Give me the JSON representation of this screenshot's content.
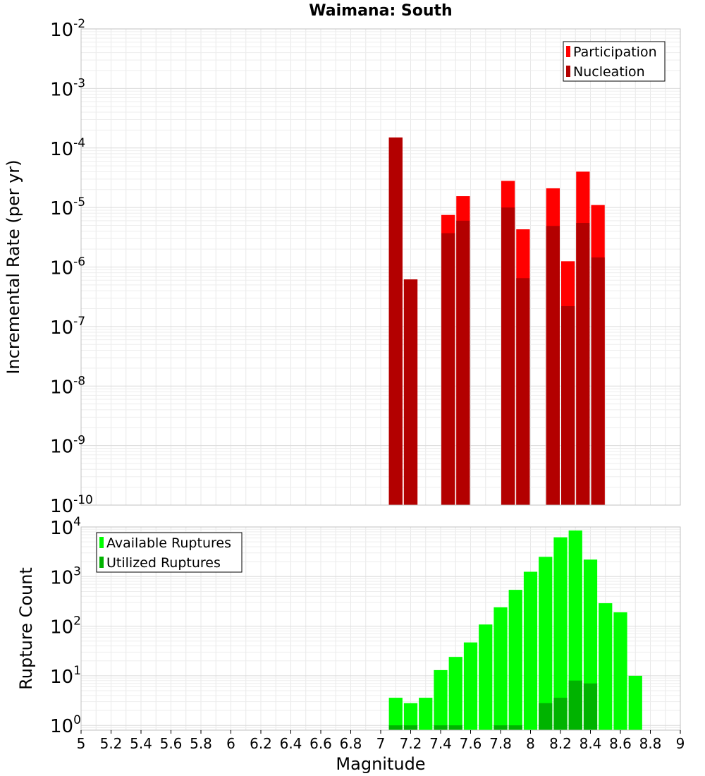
{
  "chart_data": [
    {
      "type": "bar",
      "title": "Waimana: South",
      "xlabel": "",
      "ylabel": "Incremental Rate (per yr)",
      "yscale": "log",
      "ylim": [
        1e-10,
        0.01
      ],
      "xlim": [
        5,
        9
      ],
      "grid": true,
      "y_ticks": [
        {
          "base": "10",
          "exp": "-10"
        },
        {
          "base": "10",
          "exp": "-9"
        },
        {
          "base": "10",
          "exp": "-8"
        },
        {
          "base": "10",
          "exp": "-7"
        },
        {
          "base": "10",
          "exp": "-6"
        },
        {
          "base": "10",
          "exp": "-5"
        },
        {
          "base": "10",
          "exp": "-4"
        },
        {
          "base": "10",
          "exp": "-3"
        },
        {
          "base": "10",
          "exp": "-2"
        }
      ],
      "legend_position": "top-right",
      "bar_width": 0.1,
      "series": [
        {
          "name": "Participation",
          "color": "#ff0000",
          "x": [
            7.1,
            7.2,
            7.45,
            7.55,
            7.85,
            7.95,
            8.15,
            8.25,
            8.35,
            8.45
          ],
          "values": [
            0.00015,
            6.2e-07,
            7.5e-06,
            1.55e-05,
            2.8e-05,
            4.3e-06,
            2.1e-05,
            1.25e-06,
            4e-05,
            1.1e-05
          ]
        },
        {
          "name": "Nucleation",
          "color": "#b30000",
          "x": [
            7.1,
            7.2,
            7.45,
            7.55,
            7.85,
            7.95,
            8.15,
            8.25,
            8.35,
            8.45
          ],
          "values": [
            0.00015,
            6.2e-07,
            3.7e-06,
            6e-06,
            1e-05,
            6.5e-07,
            4.9e-06,
            2.2e-07,
            5.5e-06,
            1.45e-06
          ]
        }
      ]
    },
    {
      "type": "bar",
      "title": "",
      "xlabel": "Magnitude",
      "ylabel": "Rupture Count",
      "yscale": "log",
      "ylim": [
        0.8,
        10000
      ],
      "xlim": [
        5,
        9
      ],
      "grid": true,
      "x_ticks": [
        "5",
        "5.2",
        "5.4",
        "5.6",
        "5.8",
        "6",
        "6.2",
        "6.4",
        "6.6",
        "6.8",
        "7",
        "7.2",
        "7.4",
        "7.6",
        "7.8",
        "8",
        "8.2",
        "8.4",
        "8.6",
        "8.8",
        "9"
      ],
      "y_ticks": [
        {
          "base": "10",
          "exp": "0"
        },
        {
          "base": "10",
          "exp": "1"
        },
        {
          "base": "10",
          "exp": "2"
        },
        {
          "base": "10",
          "exp": "3"
        },
        {
          "base": "10",
          "exp": "4"
        }
      ],
      "legend_position": "top-left",
      "bar_width": 0.1,
      "series": [
        {
          "name": "Available Ruptures",
          "color": "#00ff00",
          "x": [
            7.1,
            7.2,
            7.3,
            7.4,
            7.5,
            7.6,
            7.7,
            7.8,
            7.9,
            8.0,
            8.1,
            8.2,
            8.3,
            8.4,
            8.5,
            8.6,
            8.7,
            8.8
          ],
          "values": [
            3.6,
            2.8,
            3.6,
            13,
            24,
            47,
            108,
            240,
            540,
            1250,
            2500,
            6200,
            8500,
            2200,
            290,
            190,
            10,
            0
          ]
        },
        {
          "name": "Utilized Ruptures",
          "color": "#00b300",
          "x": [
            7.1,
            7.2,
            7.3,
            7.4,
            7.5,
            7.6,
            7.7,
            7.8,
            7.9,
            8.0,
            8.1,
            8.2,
            8.3,
            8.4,
            8.5,
            8.6,
            8.7,
            8.8
          ],
          "values": [
            1,
            1,
            0,
            1,
            1,
            0,
            0,
            1,
            1,
            0,
            2.8,
            3.6,
            8,
            7,
            0,
            0,
            0,
            0
          ]
        }
      ]
    }
  ]
}
